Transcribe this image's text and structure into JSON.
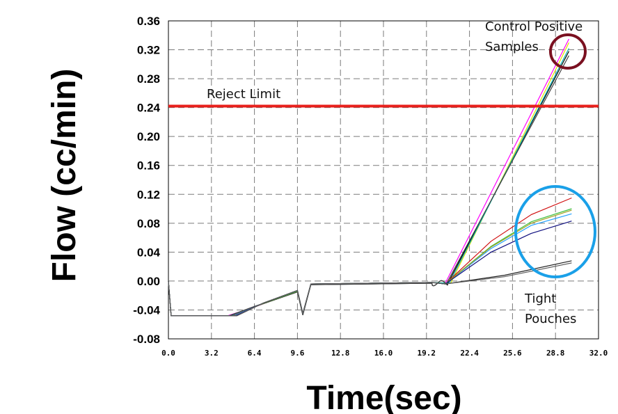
{
  "chart_data": {
    "type": "line",
    "xlabel": "Time(sec)",
    "ylabel": "Flow (cc/min)",
    "xlim": [
      0,
      32
    ],
    "ylim": [
      -0.08,
      0.36
    ],
    "xticks": [
      "0.0",
      "3.2",
      "6.4",
      "9.6",
      "12.8",
      "16.0",
      "19.2",
      "22.4",
      "25.6",
      "28.8",
      "32.0"
    ],
    "yticks": [
      "0.36",
      "0.32",
      "0.28",
      "0.24",
      "0.20",
      "0.16",
      "0.12",
      "0.08",
      "0.04",
      "0.00",
      "-0.04",
      "-0.08"
    ],
    "grid": true,
    "reject_limit": {
      "label": "Reject Limit",
      "y": 0.242,
      "color": "#e8201c"
    },
    "annotations": {
      "control_positive": "Control Positive\nSamples",
      "tight_pouches": "Tight\nPouches"
    },
    "highlight_colors": {
      "control_circle": "#7a1020",
      "tight_circle": "#1aa0e8"
    },
    "series": [
      {
        "color": "#ff00ff",
        "group": "control",
        "values": [
          [
            0,
            0.0
          ],
          [
            0.2,
            -0.048
          ],
          [
            4.4,
            -0.048
          ],
          [
            6.4,
            -0.036
          ],
          [
            9.6,
            -0.014
          ],
          [
            10.0,
            -0.046
          ],
          [
            10.6,
            -0.004
          ],
          [
            19.6,
            -0.002
          ],
          [
            20.6,
            -0.003
          ],
          [
            29.8,
            0.335
          ]
        ]
      },
      {
        "color": "#e0e000",
        "group": "control",
        "values": [
          [
            0,
            0.0
          ],
          [
            0.2,
            -0.048
          ],
          [
            4.8,
            -0.048
          ],
          [
            6.6,
            -0.034
          ],
          [
            9.6,
            -0.014
          ],
          [
            10.0,
            -0.046
          ],
          [
            10.6,
            -0.004
          ],
          [
            19.6,
            -0.002
          ],
          [
            21.0,
            -0.003
          ],
          [
            29.8,
            0.33
          ]
        ]
      },
      {
        "color": "#000000",
        "group": "control",
        "values": [
          [
            0,
            0.0
          ],
          [
            0.2,
            -0.048
          ],
          [
            4.6,
            -0.048
          ],
          [
            6.5,
            -0.035
          ],
          [
            9.6,
            -0.015
          ],
          [
            10.0,
            -0.047
          ],
          [
            10.6,
            -0.005
          ],
          [
            19.6,
            -0.003
          ],
          [
            20.8,
            -0.003
          ],
          [
            29.8,
            0.318
          ]
        ]
      },
      {
        "color": "#00b0b0",
        "group": "control",
        "values": [
          [
            0,
            0.0
          ],
          [
            0.2,
            -0.048
          ],
          [
            4.7,
            -0.048
          ],
          [
            6.6,
            -0.034
          ],
          [
            9.6,
            -0.014
          ],
          [
            10.0,
            -0.046
          ],
          [
            10.6,
            -0.004
          ],
          [
            19.6,
            -0.002
          ],
          [
            20.9,
            -0.003
          ],
          [
            29.8,
            0.322
          ]
        ]
      },
      {
        "color": "#404040",
        "group": "control",
        "values": [
          [
            0,
            0.0
          ],
          [
            0.2,
            -0.048
          ],
          [
            4.5,
            -0.048
          ],
          [
            6.4,
            -0.035
          ],
          [
            9.6,
            -0.015
          ],
          [
            10.0,
            -0.047
          ],
          [
            10.6,
            -0.005
          ],
          [
            19.6,
            -0.003
          ],
          [
            20.7,
            -0.003
          ],
          [
            29.8,
            0.312
          ]
        ]
      },
      {
        "color": "#d01010",
        "group": "tight",
        "values": [
          [
            0,
            0.0
          ],
          [
            0.2,
            -0.048
          ],
          [
            4.8,
            -0.048
          ],
          [
            6.8,
            -0.033
          ],
          [
            9.6,
            -0.014
          ],
          [
            10.0,
            -0.045
          ],
          [
            10.6,
            -0.004
          ],
          [
            19.6,
            -0.002
          ],
          [
            20.6,
            -0.004
          ],
          [
            24.0,
            0.055
          ],
          [
            27.0,
            0.092
          ],
          [
            30.0,
            0.115
          ]
        ]
      },
      {
        "color": "#40c040",
        "group": "tight",
        "values": [
          [
            0,
            0.0
          ],
          [
            0.2,
            -0.048
          ],
          [
            4.9,
            -0.048
          ],
          [
            6.8,
            -0.033
          ],
          [
            9.6,
            -0.014
          ],
          [
            10.0,
            -0.045
          ],
          [
            10.6,
            -0.004
          ],
          [
            19.6,
            -0.002
          ],
          [
            20.6,
            -0.004
          ],
          [
            24.0,
            0.048
          ],
          [
            27.0,
            0.082
          ],
          [
            30.0,
            0.1
          ]
        ]
      },
      {
        "color": "#20a0ff",
        "group": "tight",
        "values": [
          [
            0,
            0.0
          ],
          [
            0.2,
            -0.048
          ],
          [
            4.9,
            -0.048
          ],
          [
            6.9,
            -0.032
          ],
          [
            9.6,
            -0.013
          ],
          [
            10.0,
            -0.045
          ],
          [
            10.6,
            -0.004
          ],
          [
            19.6,
            -0.002
          ],
          [
            20.6,
            -0.004
          ],
          [
            24.0,
            0.045
          ],
          [
            27.0,
            0.077
          ],
          [
            30.0,
            0.093
          ]
        ]
      },
      {
        "color": "#a0a020",
        "group": "tight",
        "values": [
          [
            0,
            0.0
          ],
          [
            0.2,
            -0.048
          ],
          [
            5.0,
            -0.048
          ],
          [
            6.9,
            -0.032
          ],
          [
            9.6,
            -0.013
          ],
          [
            10.0,
            -0.045
          ],
          [
            10.6,
            -0.004
          ],
          [
            19.6,
            -0.002
          ],
          [
            20.6,
            -0.004
          ],
          [
            24.0,
            0.047
          ],
          [
            27.0,
            0.08
          ],
          [
            30.0,
            0.098
          ]
        ]
      },
      {
        "color": "#101080",
        "group": "tight",
        "values": [
          [
            0,
            0.0
          ],
          [
            0.2,
            -0.048
          ],
          [
            5.0,
            -0.048
          ],
          [
            7.0,
            -0.031
          ],
          [
            9.6,
            -0.013
          ],
          [
            10.0,
            -0.045
          ],
          [
            10.6,
            -0.004
          ],
          [
            19.6,
            -0.002
          ],
          [
            20.6,
            -0.004
          ],
          [
            24.0,
            0.04
          ],
          [
            27.0,
            0.066
          ],
          [
            30.0,
            0.083
          ]
        ]
      },
      {
        "color": "#202020",
        "group": "tight",
        "values": [
          [
            0,
            0.0
          ],
          [
            0.2,
            -0.048
          ],
          [
            5.1,
            -0.048
          ],
          [
            7.0,
            -0.031
          ],
          [
            9.6,
            -0.013
          ],
          [
            10.0,
            -0.045
          ],
          [
            10.6,
            -0.004
          ],
          [
            19.6,
            -0.002
          ],
          [
            20.6,
            -0.004
          ],
          [
            25.0,
            0.008
          ],
          [
            30.0,
            0.028
          ]
        ]
      },
      {
        "color": "#606060",
        "group": "tight",
        "values": [
          [
            0,
            0.0
          ],
          [
            0.2,
            -0.048
          ],
          [
            5.1,
            -0.048
          ],
          [
            7.1,
            -0.03
          ],
          [
            9.6,
            -0.013
          ],
          [
            10.0,
            -0.045
          ],
          [
            10.6,
            -0.004
          ],
          [
            19.6,
            -0.002
          ],
          [
            20.6,
            -0.004
          ],
          [
            25.0,
            0.006
          ],
          [
            30.0,
            0.025
          ]
        ]
      }
    ]
  }
}
